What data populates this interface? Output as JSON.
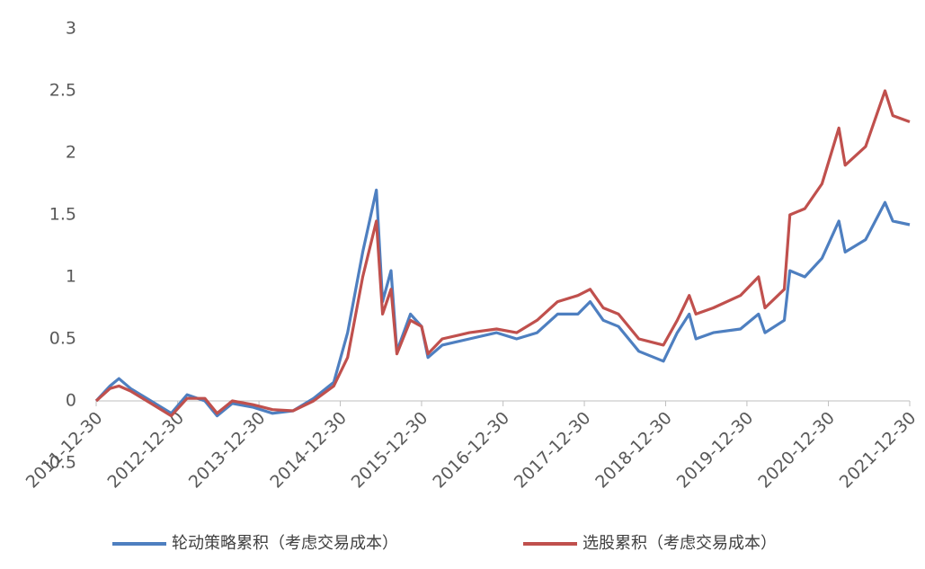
{
  "chart_data": {
    "type": "line",
    "x": [
      "2011-12-30",
      "2012-03-01",
      "2012-04-10",
      "2012-06-01",
      "2012-09-01",
      "2012-12-01",
      "2013-02-10",
      "2013-05-01",
      "2013-06-25",
      "2013-09-01",
      "2013-12-01",
      "2014-03-01",
      "2014-06-01",
      "2014-09-01",
      "2014-12-01",
      "2015-02-01",
      "2015-04-10",
      "2015-06-10",
      "2015-07-08",
      "2015-08-15",
      "2015-09-10",
      "2015-11-10",
      "2015-12-30",
      "2016-01-28",
      "2016-04-01",
      "2016-08-01",
      "2016-12-01",
      "2017-03-01",
      "2017-06-01",
      "2017-09-01",
      "2017-12-01",
      "2018-01-25",
      "2018-03-25",
      "2018-06-01",
      "2018-09-01",
      "2018-12-20",
      "2019-02-20",
      "2019-04-15",
      "2019-05-15",
      "2019-08-01",
      "2019-12-01",
      "2020-02-20",
      "2020-03-20",
      "2020-06-15",
      "2020-07-10",
      "2020-09-15",
      "2020-12-01",
      "2021-02-15",
      "2021-03-15",
      "2021-06-15",
      "2021-09-10",
      "2021-10-15",
      "2021-12-30"
    ],
    "series": [
      {
        "name": "轮动策略累积（考虑交易成本）",
        "color": "#4e7fc0",
        "values": [
          0,
          0.12,
          0.18,
          0.1,
          0.0,
          -0.1,
          0.05,
          0.0,
          -0.12,
          -0.02,
          -0.05,
          -0.1,
          -0.08,
          0.02,
          0.15,
          0.55,
          1.2,
          1.7,
          0.8,
          1.05,
          0.4,
          0.7,
          0.6,
          0.35,
          0.45,
          0.5,
          0.55,
          0.5,
          0.55,
          0.7,
          0.7,
          0.8,
          0.65,
          0.6,
          0.4,
          0.32,
          0.55,
          0.7,
          0.5,
          0.55,
          0.58,
          0.7,
          0.55,
          0.65,
          1.05,
          1.0,
          1.15,
          1.45,
          1.2,
          1.3,
          1.6,
          1.45,
          1.42
        ]
      },
      {
        "name": "选股累积（考虑交易成本）",
        "color": "#c0504d",
        "values": [
          0,
          0.1,
          0.12,
          0.08,
          -0.02,
          -0.12,
          0.02,
          0.02,
          -0.1,
          0.0,
          -0.03,
          -0.07,
          -0.08,
          0.0,
          0.12,
          0.35,
          1.0,
          1.45,
          0.7,
          0.9,
          0.38,
          0.65,
          0.6,
          0.38,
          0.5,
          0.55,
          0.58,
          0.55,
          0.65,
          0.8,
          0.85,
          0.9,
          0.75,
          0.7,
          0.5,
          0.45,
          0.65,
          0.85,
          0.7,
          0.75,
          0.85,
          1.0,
          0.75,
          0.9,
          1.5,
          1.55,
          1.75,
          2.2,
          1.9,
          2.05,
          2.5,
          2.3,
          2.25
        ]
      }
    ],
    "xlim": [
      "2011-12-30",
      "2021-12-30"
    ],
    "xticks": [
      "2011-12-30",
      "2012-12-30",
      "2013-12-30",
      "2014-12-30",
      "2015-12-30",
      "2016-12-30",
      "2017-12-30",
      "2018-12-30",
      "2019-12-30",
      "2020-12-30",
      "2021-12-30"
    ],
    "ylim": [
      -0.5,
      3
    ],
    "yticks": [
      -0.5,
      0,
      0.5,
      1,
      1.5,
      2,
      2.5,
      3
    ],
    "grid": false
  }
}
